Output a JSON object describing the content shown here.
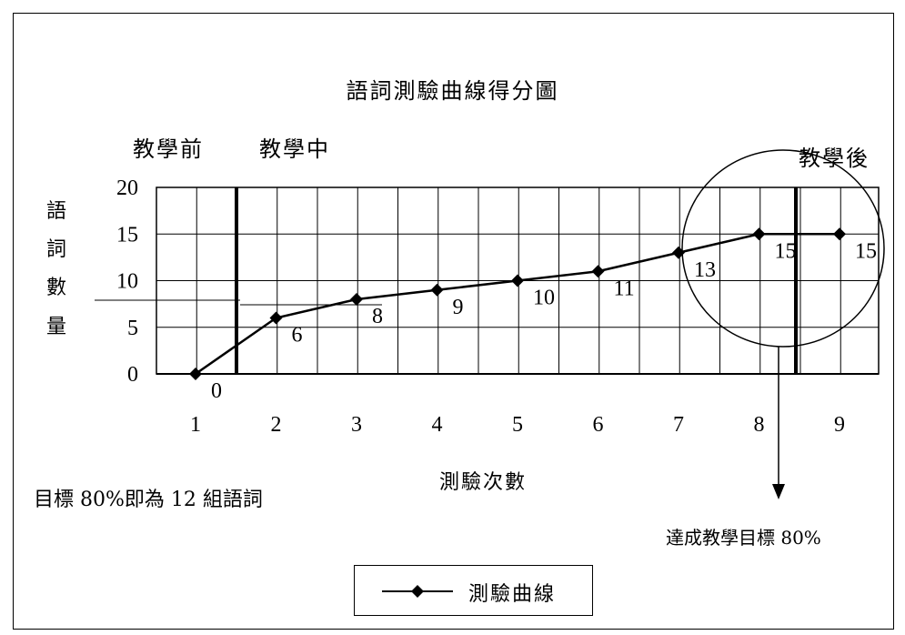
{
  "chart_data": {
    "type": "line",
    "title": "語詞測驗曲線得分圖",
    "xlabel": "測驗次數",
    "ylabel": "語詞數量",
    "categories": [
      "1",
      "2",
      "3",
      "4",
      "5",
      "6",
      "7",
      "8",
      "9"
    ],
    "series": [
      {
        "name": "測驗曲線",
        "values": [
          0,
          6,
          8,
          9,
          10,
          11,
          13,
          15,
          15
        ]
      }
    ],
    "data_labels": [
      "0",
      "6",
      "8",
      "9",
      "10",
      "11",
      "13",
      "15",
      "15"
    ],
    "ylim": [
      0,
      20
    ],
    "y_ticks": [
      "0",
      "5",
      "10",
      "15",
      "20"
    ],
    "grid": true,
    "legend": "bottom-center",
    "phase_labels": {
      "before": "教學前",
      "during": "教學中",
      "after": "教學後"
    },
    "goal_note": "目標 80%即為 12 組語詞",
    "goal_reached_note": "達成教學目標 80%"
  }
}
